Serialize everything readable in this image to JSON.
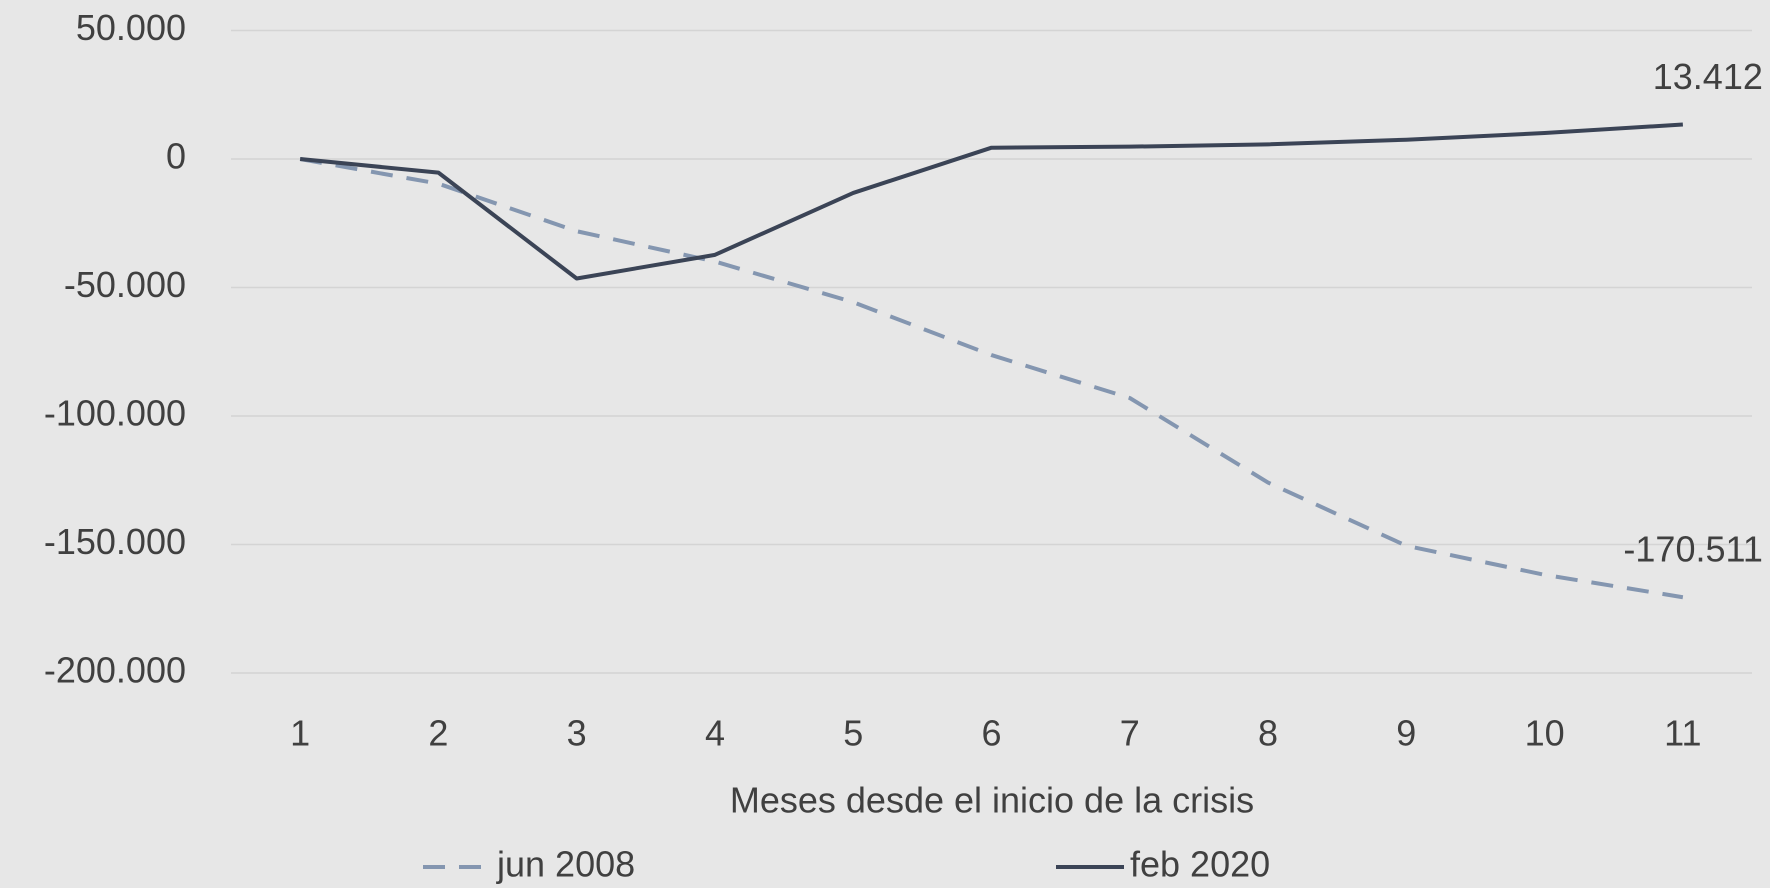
{
  "chart_data": {
    "type": "line",
    "x_label": "Meses desde el inicio de la crisis",
    "categories": [
      "1",
      "2",
      "3",
      "4",
      "5",
      "6",
      "7",
      "8",
      "9",
      "10",
      "11"
    ],
    "series": [
      {
        "name": "jun 2008",
        "color": "#8496b0",
        "dashed": true,
        "values": [
          0,
          -9600,
          -28100,
          -39900,
          -55700,
          -76300,
          -93000,
          -125900,
          -150500,
          -161800,
          -170511
        ],
        "value_labels": [
          null,
          null,
          null,
          null,
          null,
          null,
          null,
          null,
          null,
          null,
          "-170.511"
        ]
      },
      {
        "name": "feb 2020",
        "color": "#3b4456",
        "dashed": false,
        "values": [
          0,
          -5300,
          -46500,
          -37300,
          -13200,
          4400,
          4800,
          5700,
          7500,
          10100,
          13412
        ],
        "value_labels": [
          null,
          null,
          null,
          null,
          null,
          null,
          null,
          null,
          null,
          null,
          "13.412"
        ]
      }
    ],
    "ylim": [
      -200000,
      50000
    ],
    "yticks": [
      {
        "value": 50000,
        "label": "50.000"
      },
      0,
      {
        "value": -50000,
        "label": "-50.000"
      },
      {
        "value": -100000,
        "label": "-100.000"
      },
      {
        "value": -150000,
        "label": "-150.000"
      },
      {
        "value": -200000,
        "label": "-200.000"
      }
    ],
    "grid": true
  }
}
